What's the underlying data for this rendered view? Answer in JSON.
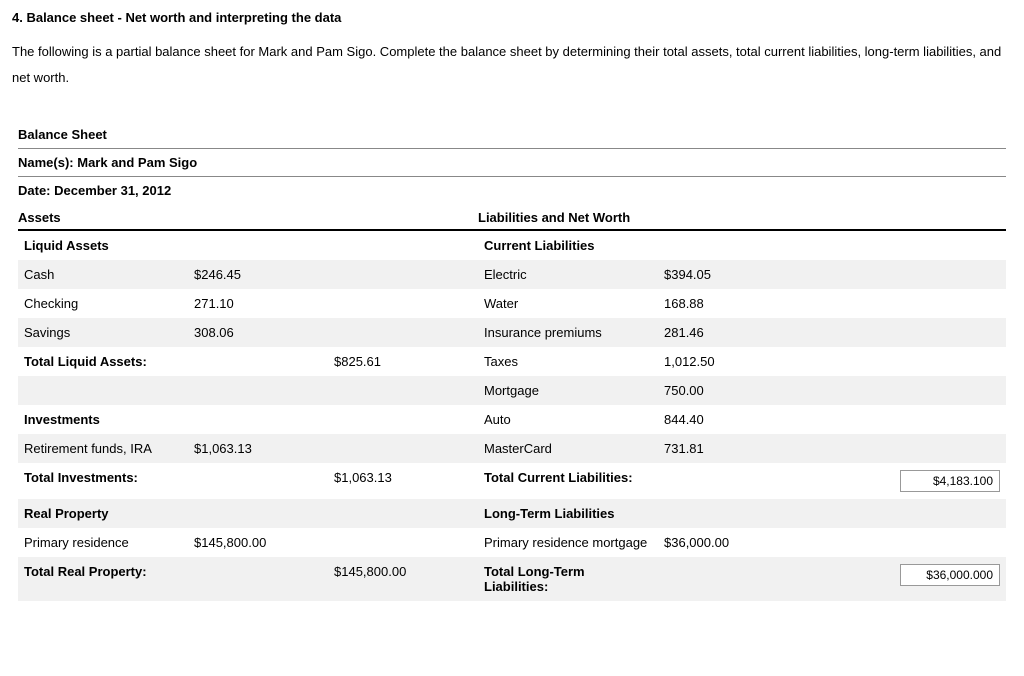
{
  "heading": "4. Balance sheet - Net worth and interpreting the data",
  "intro": "The following is a partial balance sheet for Mark and Pam Sigo. Complete the balance sheet by determining their total assets, total current liabilities, long-term liabilities, and net worth.",
  "sheet": {
    "title": "Balance Sheet",
    "names_label": "Name(s): Mark and Pam Sigo",
    "date_label": "Date: December 31, 2012",
    "left_heading": "Assets",
    "right_heading": "Liabilities and Net Worth",
    "liquid_assets_title": "Liquid Assets",
    "current_liab_title": "Current Liabilities",
    "cash_label": "Cash",
    "cash_val": "$246.45",
    "electric_label": "Electric",
    "electric_val": "$394.05",
    "checking_label": "Checking",
    "checking_val": "271.10",
    "water_label": "Water",
    "water_val": "168.88",
    "savings_label": "Savings",
    "savings_val": "308.06",
    "insurance_label": "Insurance premiums",
    "insurance_val": "281.46",
    "total_liquid_label": "Total Liquid Assets:",
    "total_liquid_val": "$825.61",
    "taxes_label": "Taxes",
    "taxes_val": "1,012.50",
    "mortgage_label": "Mortgage",
    "mortgage_val": "750.00",
    "investments_title": "Investments",
    "auto_label": "Auto",
    "auto_val": "844.40",
    "retirement_label": "Retirement funds, IRA",
    "retirement_val": "$1,063.13",
    "mastercard_label": "MasterCard",
    "mastercard_val": "731.81",
    "total_invest_label": "Total Investments:",
    "total_invest_val": "$1,063.13",
    "total_current_liab_label": "Total Current Liabilities:",
    "total_current_liab_input": "$4,183.100",
    "real_prop_title": "Real Property",
    "longterm_title": "Long-Term Liabilities",
    "primary_res_label": "Primary residence",
    "primary_res_val": "$145,800.00",
    "primary_mort_label": "Primary residence mortgage",
    "primary_mort_val": "$36,000.00",
    "total_real_label": "Total Real Property:",
    "total_real_val": "$145,800.00",
    "total_longterm_label": "Total Long-Term Liabilities:",
    "total_longterm_input": "$36,000.000"
  }
}
